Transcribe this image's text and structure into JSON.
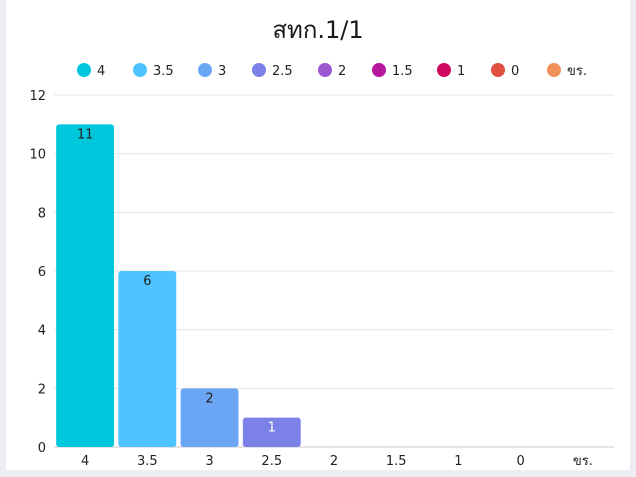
{
  "chart_data": {
    "type": "bar",
    "title": "สทก.1/1",
    "categories": [
      "4",
      "3.5",
      "3",
      "2.5",
      "2",
      "1.5",
      "1",
      "0",
      "ขร."
    ],
    "values": [
      11,
      6,
      2,
      1,
      0,
      0,
      0,
      0,
      0
    ],
    "colors": [
      "#00c8dc",
      "#4dc4ff",
      "#6ba6f5",
      "#7b81e6",
      "#9b57d0",
      "#b5179e",
      "#d0085f",
      "#e05142",
      "#f0905a"
    ],
    "legend": [
      "4",
      "3.5",
      "3",
      "2.5",
      "2",
      "1.5",
      "1",
      "0",
      "ขร."
    ],
    "legend_position": "top",
    "yticks": [
      "0",
      "2",
      "4",
      "6",
      "8",
      "10",
      "12"
    ],
    "ylim": [
      0,
      12
    ],
    "grid": true,
    "xlabel": "",
    "ylabel": ""
  }
}
